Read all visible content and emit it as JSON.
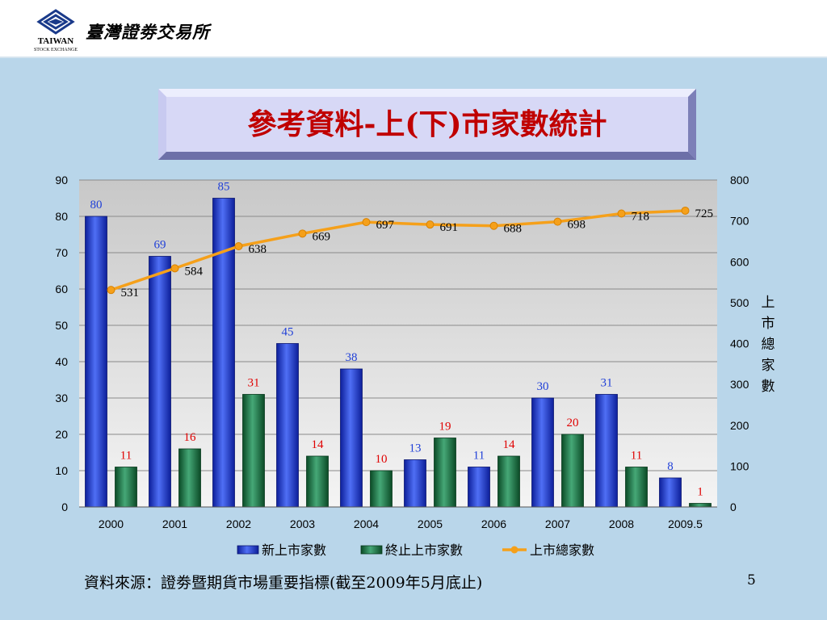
{
  "header": {
    "org_name": "臺灣證劵交易所",
    "logo_text_line1": "TAIWAN",
    "logo_text_line2": "STOCK EXCHANGE"
  },
  "title": "參考資料-上(下)市家數統計",
  "right_axis_label": "上市總家數",
  "source": "資料來源：證劵暨期貨市場重要指標(截至2009年5月底止)",
  "page_number": "5",
  "colors": {
    "new_listing": "#1f3fd8",
    "delisting": "#1e7a46",
    "total": "#f5a01a",
    "label_blue": "#1f3fd8",
    "label_red": "#e00000",
    "title_red": "#c00000"
  },
  "chart_data": {
    "type": "bar",
    "categories": [
      "2000",
      "2001",
      "2002",
      "2003",
      "2004",
      "2005",
      "2006",
      "2007",
      "2008",
      "2009.5"
    ],
    "series": [
      {
        "name": "新上市家數",
        "type": "bar",
        "axis": "left",
        "values": [
          80,
          69,
          85,
          45,
          38,
          13,
          11,
          30,
          31,
          8
        ]
      },
      {
        "name": "終止上市家數",
        "type": "bar",
        "axis": "left",
        "values": [
          11,
          16,
          31,
          14,
          10,
          19,
          14,
          20,
          11,
          1
        ]
      },
      {
        "name": "上市總家數",
        "type": "line",
        "axis": "right",
        "values": [
          531,
          584,
          638,
          669,
          697,
          691,
          688,
          698,
          718,
          725
        ]
      }
    ],
    "left_axis": {
      "ylim": [
        0,
        90
      ],
      "ticks": [
        0,
        10,
        20,
        30,
        40,
        50,
        60,
        70,
        80,
        90
      ]
    },
    "right_axis": {
      "ylim": [
        0,
        800
      ],
      "ticks": [
        0,
        100,
        200,
        300,
        400,
        500,
        600,
        700,
        800
      ]
    },
    "grid": true,
    "legend": "bottom"
  }
}
